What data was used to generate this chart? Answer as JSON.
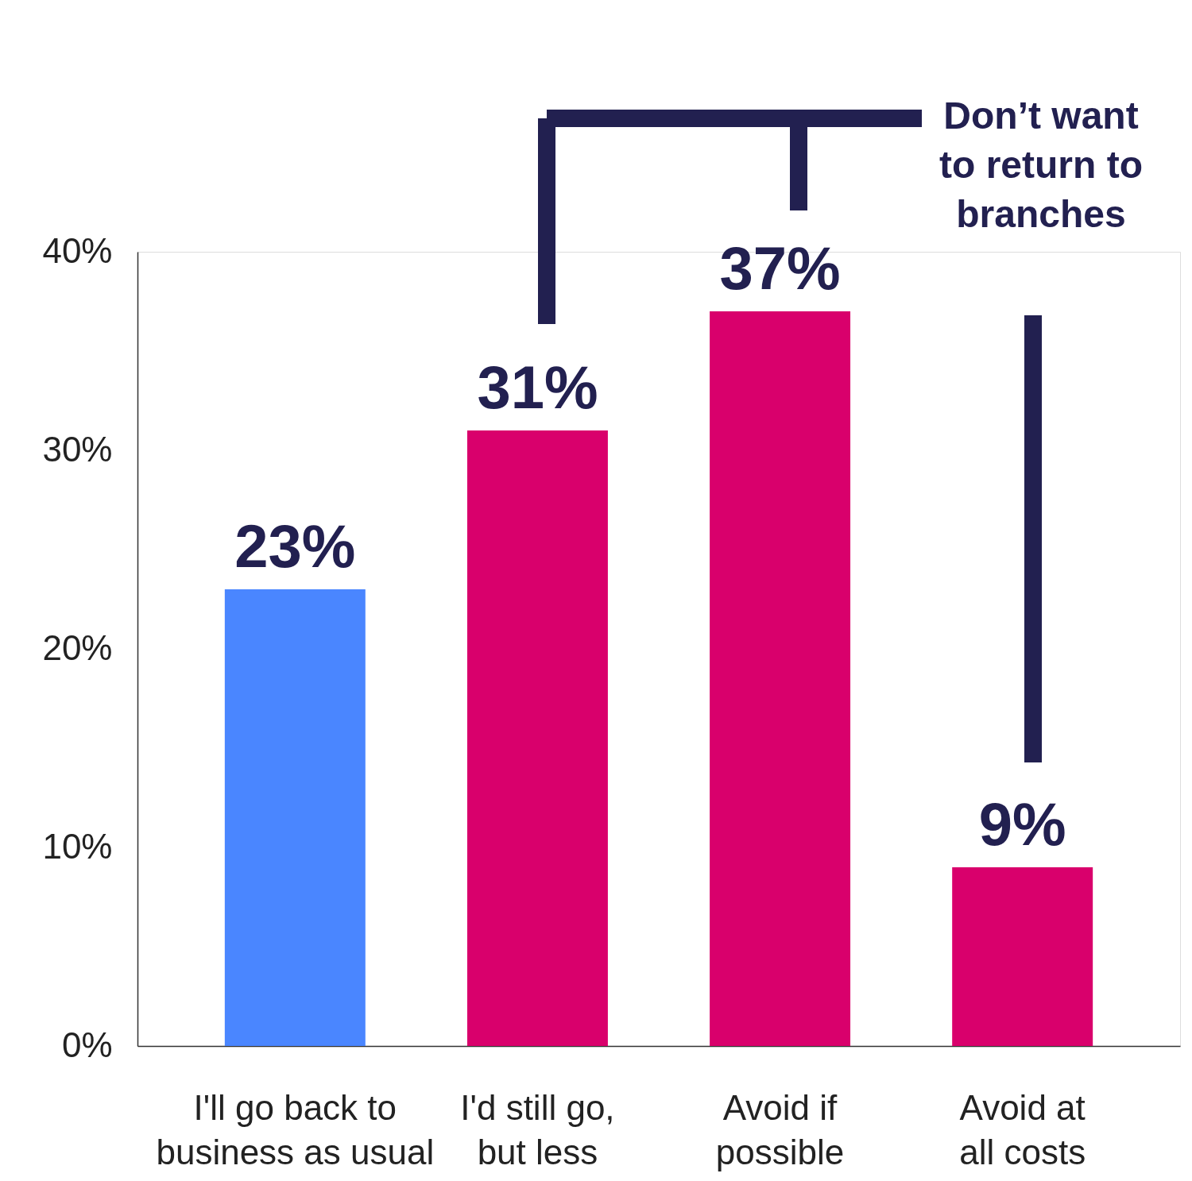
{
  "chart_data": {
    "type": "bar",
    "categories": [
      "I'll go back to business as usual",
      "I'd still go, but less",
      "Avoid if possible",
      "Avoid at all costs"
    ],
    "values": [
      23,
      31,
      37,
      9
    ],
    "colors": [
      "#4a86ff",
      "#d9006c",
      "#d9006c",
      "#d9006c"
    ],
    "value_labels": [
      "23%",
      "31%",
      "37%",
      "9%"
    ],
    "ylim": [
      0,
      40
    ],
    "yticks": [
      {
        "value": 0,
        "label": "0%"
      },
      {
        "value": 10,
        "label": "10%"
      },
      {
        "value": 20,
        "label": "20%"
      },
      {
        "value": 30,
        "label": "30%"
      },
      {
        "value": 40,
        "label": "40%"
      }
    ],
    "grid": false,
    "annotations": [
      "Don’t want to return to branches"
    ]
  }
}
